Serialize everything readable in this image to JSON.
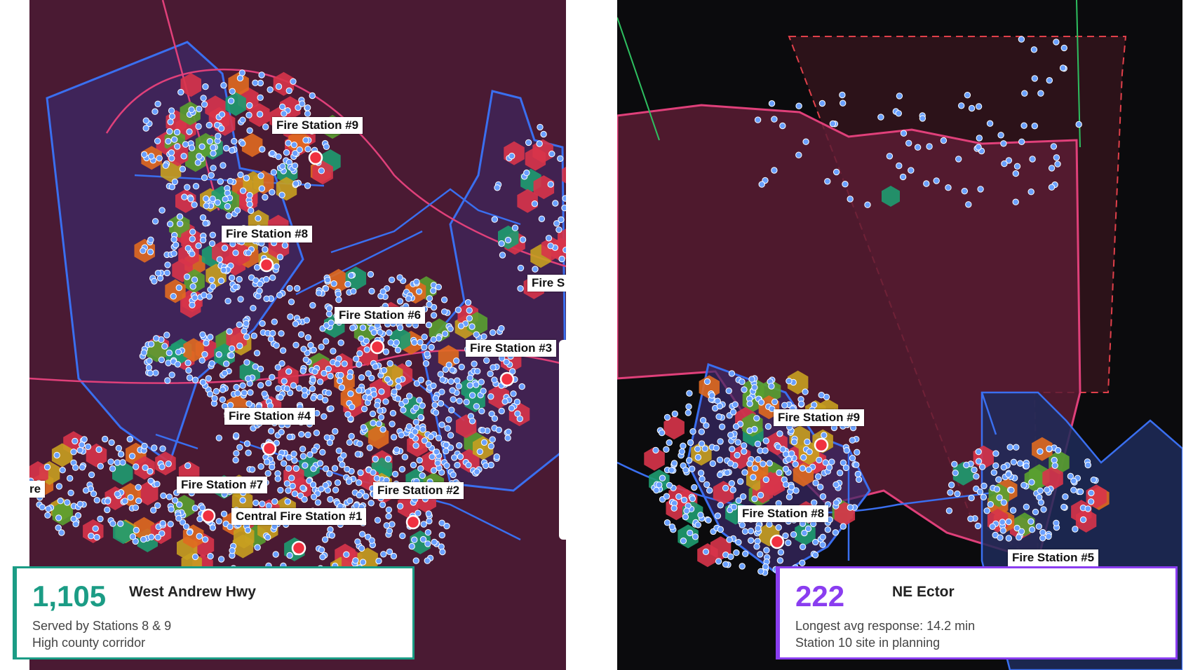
{
  "left_map": {
    "labels": [
      {
        "id": "fs9",
        "text": "Fire Station #9"
      },
      {
        "id": "fs8",
        "text": "Fire Station #8"
      },
      {
        "id": "fs6",
        "text": "Fire Station #6"
      },
      {
        "id": "fs3",
        "text": "Fire Station #3"
      },
      {
        "id": "fs4",
        "text": "Fire Station #4"
      },
      {
        "id": "fs7",
        "text": "Fire Station #7"
      },
      {
        "id": "fs2",
        "text": "Fire Station #2"
      },
      {
        "id": "fs1",
        "text": "Central Fire Station #1"
      },
      {
        "id": "fsS",
        "text": "Fire S"
      },
      {
        "id": "fsre",
        "text": "re"
      }
    ],
    "card": {
      "value": "1,105",
      "name": "West Andrew Hwy",
      "line1": "Served by Stations 8 & 9",
      "line2": "High county corridor"
    }
  },
  "right_map": {
    "labels": [
      {
        "id": "fs9",
        "text": "Fire Station #9"
      },
      {
        "id": "fs8",
        "text": "Fire Station #8"
      },
      {
        "id": "fs5",
        "text": "Fire Station #5"
      }
    ],
    "card": {
      "value": "222",
      "name": "NE Ector",
      "line1": "Longest avg response: 14.2 min",
      "line2": "Station 10 site in planning"
    }
  },
  "colors": {
    "background_left": "#4a1a33",
    "background_right": "#0b0b0d",
    "district_fill": "#3a2a6a",
    "boundary_pink": "#e0407a",
    "road_blue": "#3a6ff0",
    "dot": "#6aa0ff",
    "hex_red": "#d8344a",
    "hex_orange": "#e06a20",
    "hex_yellow": "#c8a020",
    "hex_green": "#5aa030",
    "hex_teal": "#1e9c70",
    "station_dot": "#f03040",
    "accent_left": "#1b9c85",
    "accent_right": "#8a3df0"
  }
}
